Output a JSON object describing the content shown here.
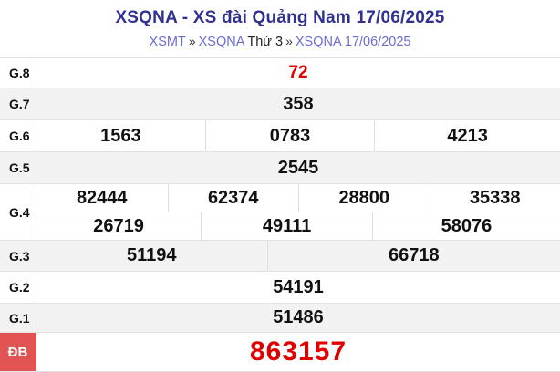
{
  "header": {
    "title": "XSQNA - XS đài Quảng Nam 17/06/2025",
    "breadcrumb": {
      "link_xsmt": "XSMT",
      "sep1": "»",
      "link_xsqna": "XSQNA",
      "weekday": "Thứ 3",
      "sep2": "»",
      "link_current": "XSQNA 17/06/2025"
    }
  },
  "results": {
    "g8": {
      "label": "G.8",
      "values": [
        "72"
      ]
    },
    "g7": {
      "label": "G.7",
      "values": [
        "358"
      ]
    },
    "g6": {
      "label": "G.6",
      "values": [
        "1563",
        "0783",
        "4213"
      ]
    },
    "g5": {
      "label": "G.5",
      "values": [
        "2545"
      ]
    },
    "g4": {
      "label": "G.4",
      "row1": [
        "82444",
        "62374",
        "28800",
        "35338"
      ],
      "row2": [
        "26719",
        "49111",
        "58076"
      ]
    },
    "g3": {
      "label": "G.3",
      "values": [
        "51194",
        "66718"
      ]
    },
    "g2": {
      "label": "G.2",
      "values": [
        "54191"
      ]
    },
    "g1": {
      "label": "G.1",
      "values": [
        "51486"
      ]
    },
    "db": {
      "label": "ĐB",
      "values": [
        "863157"
      ]
    }
  },
  "colors": {
    "title_blue": "#31318f",
    "link_purple": "#6b6bd0",
    "number_red": "#e10000",
    "special_badge_bg": "#e25353",
    "alt_row_bg": "#f2f2f2",
    "border_grey": "#e2e2e2"
  }
}
